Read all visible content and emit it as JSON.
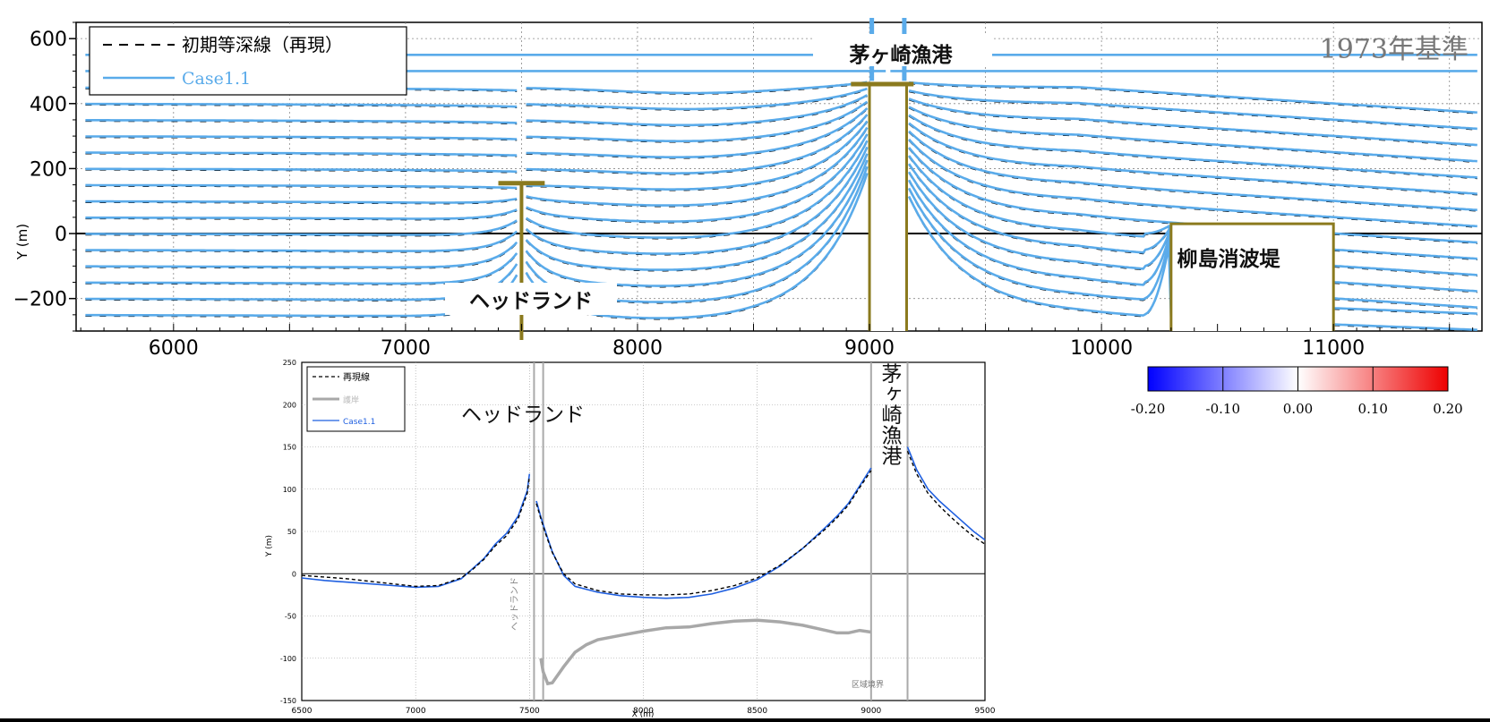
{
  "chart_data": [
    {
      "type": "line",
      "title_right": "1973年基準",
      "ylabel": "Y (m)",
      "xlim": [
        5580,
        11640
      ],
      "ylim": [
        -300,
        650
      ],
      "x_ticks": [
        6000,
        7000,
        8000,
        9000,
        10000,
        11000
      ],
      "y_ticks": [
        600,
        400,
        200,
        0,
        -200
      ],
      "y_tick_labels": [
        "600",
        "400",
        "200",
        "0",
        "−200"
      ],
      "legend": {
        "position": "top-left",
        "entries": [
          {
            "label": "初期等深線（再現）",
            "style": "dashed",
            "color": "#000000"
          },
          {
            "label": "Case1.1",
            "style": "solid",
            "color": "#5aabea"
          }
        ]
      },
      "contour_offsets": [
        -250,
        -200,
        -150,
        -100,
        -50,
        0,
        50,
        100,
        150,
        200,
        250,
        300,
        350,
        400,
        450
      ],
      "annotations": [
        "茅ヶ崎漁港",
        "ヘッドランド",
        "柳島消波堤"
      ],
      "structures": {
        "headland": {
          "x": 7500,
          "crown_y": 155,
          "crown_width": 200
        },
        "fishing_port": {
          "x_left": 9000,
          "x_right": 9160,
          "crown_y": 460
        },
        "breakwater": {
          "x_left": 10300,
          "x_right": 11000,
          "top_y": 30
        }
      }
    },
    {
      "type": "line",
      "xlabel": "X (m)",
      "ylabel": "Y (m)",
      "xlim": [
        6500,
        9500
      ],
      "ylim": [
        -150,
        250
      ],
      "x_ticks": [
        6500,
        7000,
        7500,
        8000,
        8500,
        9000,
        9500
      ],
      "x_tick_labels": [
        "6500",
        "7000",
        "7500",
        "8000",
        "8500",
        "9000",
        "9500"
      ],
      "y_ticks": [
        250,
        200,
        150,
        100,
        50,
        0,
        -50,
        -100,
        -150
      ],
      "legend": {
        "position": "top-left",
        "entries": [
          {
            "label": "再現線",
            "style": "dashed",
            "color": "#000000"
          },
          {
            "label": "護岸",
            "style": "solid",
            "color": "#a8a8a8"
          },
          {
            "label": "Case1.1",
            "style": "solid",
            "color": "#1f5fe0"
          }
        ]
      },
      "annotations": [
        "ヘッドランド",
        "茅ヶ崎漁港"
      ],
      "vertical_labels": [
        "ヘッドランド",
        "区域境界"
      ],
      "series": [
        {
          "name": "再現線",
          "x": [
            6500,
            6600,
            6700,
            6800,
            6900,
            7000,
            7100,
            7200,
            7250,
            7300,
            7350,
            7400,
            7450,
            7490,
            7500
          ],
          "y": [
            -2,
            -4,
            -6,
            -9,
            -12,
            -15,
            -14,
            -5,
            5,
            17,
            33,
            45,
            65,
            95,
            115
          ],
          "x2": [
            7530,
            7550,
            7570,
            7600,
            7650,
            7700,
            7800,
            7900,
            8000,
            8100,
            8200,
            8300,
            8400,
            8500,
            8600,
            8700,
            8800,
            8850,
            8900,
            8950,
            9000
          ],
          "y2": [
            83,
            65,
            48,
            25,
            0,
            -12,
            -20,
            -24,
            -25,
            -25,
            -24,
            -20,
            -14,
            -5,
            10,
            30,
            53,
            66,
            81,
            102,
            122
          ],
          "x3": [
            9160,
            9200,
            9250,
            9300,
            9350,
            9400,
            9450,
            9500
          ],
          "y3": [
            145,
            118,
            95,
            80,
            67,
            55,
            44,
            35
          ]
        },
        {
          "name": "Case1.1",
          "x": [
            6500,
            6600,
            6700,
            6800,
            6900,
            7000,
            7100,
            7200,
            7250,
            7300,
            7350,
            7400,
            7450,
            7490,
            7500
          ],
          "y": [
            -5,
            -8,
            -10,
            -12,
            -14,
            -16,
            -15,
            -6,
            6,
            18,
            35,
            48,
            68,
            98,
            118
          ],
          "x2": [
            7530,
            7550,
            7570,
            7600,
            7650,
            7700,
            7800,
            7900,
            8000,
            8100,
            8200,
            8300,
            8400,
            8500,
            8600,
            8700,
            8800,
            8850,
            8900,
            8950,
            9000
          ],
          "y2": [
            86,
            67,
            50,
            26,
            -2,
            -15,
            -22,
            -26,
            -28,
            -29,
            -28,
            -24,
            -17,
            -7,
            9,
            30,
            55,
            68,
            83,
            104,
            125
          ],
          "x3": [
            9160,
            9200,
            9250,
            9300,
            9350,
            9400,
            9450,
            9500
          ],
          "y3": [
            150,
            123,
            100,
            86,
            74,
            62,
            50,
            40
          ]
        },
        {
          "name": "護岸",
          "x": [
            7550,
            7560,
            7580,
            7600,
            7650,
            7700,
            7750,
            7800,
            7900,
            8000,
            8100,
            8200,
            8300,
            8400,
            8500,
            8600,
            8700,
            8800,
            8850,
            8900,
            8950,
            9000
          ],
          "y": [
            -100,
            -116,
            -130,
            -129,
            -110,
            -93,
            -84,
            -78,
            -73,
            -68,
            -64,
            -63,
            -59,
            -56,
            -55,
            -57,
            -61,
            -67,
            -70,
            -70,
            -67,
            -69
          ]
        }
      ],
      "vertical_lines": [
        7520,
        7560,
        9000,
        9160
      ]
    },
    {
      "type": "heatmap",
      "colorbar_ticks": [
        "-0.20",
        "-0.10",
        "0.00",
        "0.10",
        "0.20"
      ],
      "range": [
        -0.2,
        0.2
      ],
      "colors": {
        "low": "#0000ff",
        "mid": "#ffffff",
        "high": "#ee0000"
      }
    }
  ]
}
